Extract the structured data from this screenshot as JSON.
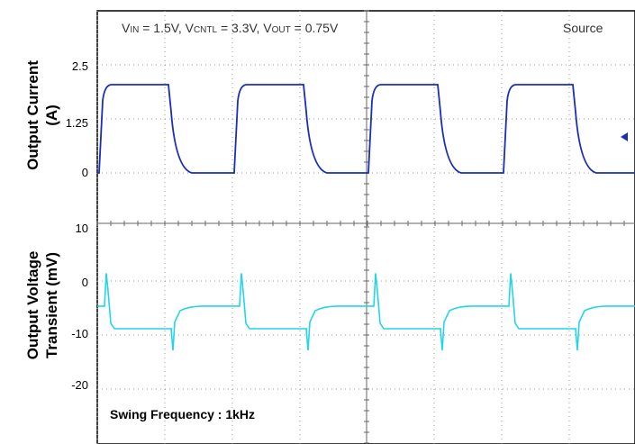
{
  "chart_data": [
    {
      "type": "line",
      "panel": "top",
      "ylabel_line1": "Output Current",
      "ylabel_line2": "(A)",
      "yticks": [
        "2.5",
        "1.25",
        "0"
      ],
      "ylim": [
        -0.4,
        3.75
      ],
      "x": [
        0.0,
        0.04,
        0.17,
        0.83,
        1.0,
        1.04,
        1.17,
        1.83,
        2.0,
        2.04,
        2.17,
        2.83,
        3.0,
        3.04,
        3.17,
        3.83,
        4.0
      ],
      "series": [
        {
          "values": [
            0,
            2.0,
            2.0,
            2.0,
            0,
            2.0,
            2.0,
            2.0,
            0,
            2.0,
            2.0,
            2.0,
            0,
            2.0,
            2.0,
            2.0,
            0
          ],
          "color": "#1a2fb8"
        }
      ],
      "annotations": {
        "conditions_parts": [
          "V",
          "IN",
          " = 1.5V, V",
          "CNTL",
          " = 3.3V, V",
          "OUT",
          " = 0.75V"
        ],
        "source_label": "Source"
      },
      "grid": true
    },
    {
      "type": "line",
      "panel": "bottom",
      "ylabel_line1": "Output Voltage",
      "ylabel_line2": "Transient (mV)",
      "yticks": [
        "10",
        "0",
        "-10",
        "-20"
      ],
      "ylim": [
        -30,
        10
      ],
      "series": [
        {
          "color": "#22d6e6",
          "pattern": {
            "step_up_spike_mV": 1.5,
            "settled_high_load_mV": -9.3,
            "step_down_spike_mV": -13.5,
            "settled_low_load_mV": -4.9
          }
        }
      ],
      "annotations": {
        "swing_label": "Swing Frequency : 1kHz"
      },
      "grid": true
    }
  ]
}
